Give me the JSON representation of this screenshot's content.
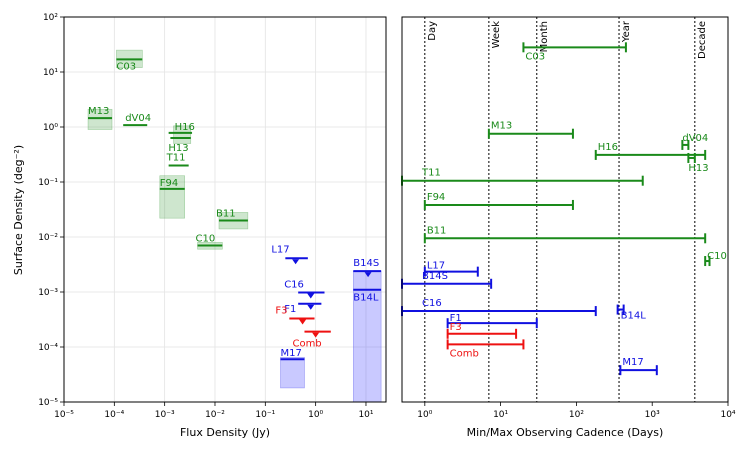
{
  "chart_data": [
    {
      "type": "scatter",
      "panel": "left",
      "xlabel": "Flux Density (Jy)",
      "ylabel": "Surface Density (deg⁻²)",
      "xscale": "log",
      "yscale": "log",
      "xlim": [
        1e-05,
        25
      ],
      "ylim": [
        1e-05,
        100
      ],
      "grid": true,
      "xtick_labels": [
        "10⁻⁵",
        "10⁻⁴",
        "10⁻³",
        "10⁻²",
        "10⁻¹",
        "10⁰",
        "10¹"
      ],
      "ytick_labels": [
        "10⁻⁵",
        "10⁻⁴",
        "10⁻³",
        "10⁻²",
        "10⁻¹",
        "10⁰",
        "10¹",
        "10²"
      ],
      "colors": {
        "green": "#1a8a1a",
        "blue": "#1010e0",
        "red": "#ee1111"
      },
      "surveys": [
        {
          "name": "C03",
          "color": "green",
          "x": [
            0.00011,
            0.00036
          ],
          "y": 17,
          "box_x": [
            0.00011,
            0.00036
          ],
          "box_y": [
            12,
            25
          ]
        },
        {
          "name": "M13",
          "color": "green",
          "x": [
            3e-05,
            9e-05
          ],
          "y": 1.45,
          "box_x": [
            3e-05,
            9e-05
          ],
          "box_y": [
            0.9,
            2.1
          ]
        },
        {
          "name": "dV04",
          "color": "green",
          "x": [
            0.00015,
            0.00045
          ],
          "y": 1.08
        },
        {
          "name": "H16",
          "color": "green",
          "x": [
            0.0012,
            0.0035
          ],
          "y": 0.78,
          "box_x": [
            0.0015,
            0.0033
          ],
          "box_y": [
            0.5,
            1.05
          ]
        },
        {
          "name": "H13",
          "color": "green",
          "x": [
            0.0013,
            0.0033
          ],
          "y": 0.63
        },
        {
          "name": "T11",
          "color": "green",
          "x": [
            0.0012,
            0.003
          ],
          "y": 0.2
        },
        {
          "name": "F94",
          "color": "green",
          "x": [
            0.0008,
            0.0025
          ],
          "y": 0.075,
          "box_x": [
            0.0008,
            0.0025
          ],
          "box_y": [
            0.022,
            0.13
          ]
        },
        {
          "name": "B11",
          "color": "green",
          "x": [
            0.012,
            0.045
          ],
          "y": 0.02,
          "box_x": [
            0.012,
            0.045
          ],
          "box_y": [
            0.014,
            0.028
          ]
        },
        {
          "name": "C10",
          "color": "green",
          "x": [
            0.0045,
            0.014
          ],
          "y": 0.007,
          "box_x": [
            0.0045,
            0.014
          ],
          "box_y": [
            0.006,
            0.008
          ]
        },
        {
          "name": "L17",
          "color": "blue",
          "x": [
            0.25,
            0.7
          ],
          "y": 0.0041,
          "marker_x": 0.4
        },
        {
          "name": "B14S",
          "color": "blue",
          "x": [
            5.6,
            20
          ],
          "y": 0.0024,
          "marker_x": 11,
          "box_x": [
            5.6,
            20
          ],
          "box_y": [
            1e-05,
            0.0024
          ]
        },
        {
          "name": "B14L",
          "color": "blue",
          "x": [
            5.6,
            20
          ],
          "y": 0.0011
        },
        {
          "name": "C16",
          "color": "blue",
          "x": [
            0.45,
            1.5
          ],
          "y": 0.00098,
          "marker_x": 0.8
        },
        {
          "name": "F1",
          "color": "blue",
          "x": [
            0.45,
            1.3
          ],
          "y": 0.00061,
          "marker_x": 0.8
        },
        {
          "name": "F3",
          "color": "red",
          "x": [
            0.3,
            0.95
          ],
          "y": 0.00033,
          "marker_x": 0.55
        },
        {
          "name": "Comb",
          "color": "red",
          "x": [
            0.6,
            2.0
          ],
          "y": 0.00019,
          "marker_x": 1.0
        },
        {
          "name": "M17",
          "color": "blue",
          "x": [
            0.2,
            0.6
          ],
          "y": 6e-05,
          "box_x": [
            0.2,
            0.6
          ],
          "box_y": [
            1.8e-05,
            6.5e-05
          ]
        }
      ]
    },
    {
      "type": "bar",
      "panel": "right",
      "xlabel": "Min/Max Observing Cadence (Days)",
      "xscale": "log",
      "xlim": [
        0.5,
        10000
      ],
      "xtick_labels": [
        "10⁰",
        "10¹",
        "10²",
        "10³",
        "10⁴"
      ],
      "reference_lines": [
        {
          "label": "Day",
          "x": 1
        },
        {
          "label": "Week",
          "x": 7
        },
        {
          "label": "Month",
          "x": 30
        },
        {
          "label": "Year",
          "x": 365
        },
        {
          "label": "Decade",
          "x": 3650
        }
      ],
      "ranges": [
        {
          "name": "C03",
          "color": "green",
          "min": 20,
          "max": 450,
          "row": 1.0
        },
        {
          "name": "M13",
          "color": "green",
          "min": 7,
          "max": 90,
          "row": 3.85
        },
        {
          "name": "dV04",
          "color": "green",
          "min": 2500,
          "max": 3000,
          "row": 4.22
        },
        {
          "name": "H16",
          "color": "green",
          "min": 180,
          "max": 5000,
          "row": 4.55
        },
        {
          "name": "H13",
          "color": "green",
          "min": 3000,
          "max": 3650,
          "row": 4.65
        },
        {
          "name": "T11",
          "color": "green",
          "min": 0.5,
          "max": 750,
          "row": 5.4
        },
        {
          "name": "F94",
          "color": "green",
          "min": 1,
          "max": 90,
          "row": 6.2
        },
        {
          "name": "B11",
          "color": "green",
          "min": 1,
          "max": 5000,
          "row": 7.3
        },
        {
          "name": "C10",
          "color": "green",
          "min": 5000,
          "max": 5700,
          "row": 8.05
        },
        {
          "name": "L17",
          "color": "blue",
          "min": 1,
          "max": 5,
          "row": 8.4
        },
        {
          "name": "B14S",
          "color": "blue",
          "min": 0.5,
          "max": 7.5,
          "row": 8.8
        },
        {
          "name": "C16",
          "color": "blue",
          "min": 0.5,
          "max": 180,
          "row": 9.7
        },
        {
          "name": "B14L",
          "color": "blue",
          "min": 350,
          "max": 420,
          "row": 9.65
        },
        {
          "name": "F1",
          "color": "blue",
          "min": 2,
          "max": 30,
          "row": 10.1
        },
        {
          "name": "F3",
          "color": "red",
          "min": 2,
          "max": 16,
          "row": 10.45
        },
        {
          "name": "Comb",
          "color": "red",
          "min": 2,
          "max": 20,
          "row": 10.8
        },
        {
          "name": "M17",
          "color": "blue",
          "min": 380,
          "max": 1150,
          "row": 11.65
        }
      ]
    }
  ]
}
